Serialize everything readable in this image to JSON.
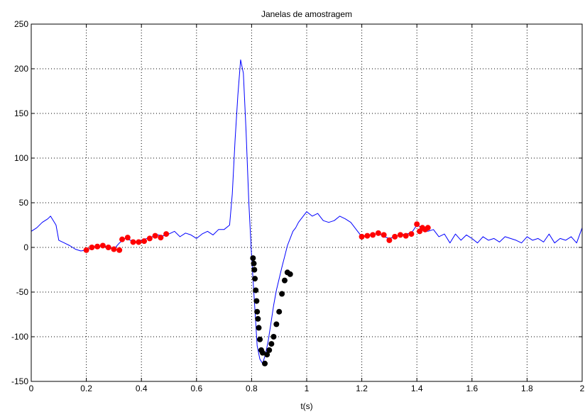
{
  "chart_data": {
    "type": "line",
    "title": "Janelas de amostragem",
    "xlabel": "t(s)",
    "ylabel": "",
    "xlim": [
      0,
      2
    ],
    "ylim": [
      -150,
      250
    ],
    "xticks": [
      0,
      0.2,
      0.4,
      0.6,
      0.8,
      1,
      1.2,
      1.4,
      1.6,
      1.8,
      2
    ],
    "xtick_labels": [
      "0",
      "0.2",
      "0.4",
      "0.6",
      "0.8",
      "1",
      "1.2",
      "1.4",
      "1.6",
      "1.8",
      "2"
    ],
    "yticks": [
      -150,
      -100,
      -50,
      0,
      50,
      100,
      150,
      200,
      250
    ],
    "ytick_labels": [
      "-150",
      "-100",
      "-50",
      "0",
      "50",
      "100",
      "150",
      "200",
      "250"
    ],
    "grid": true,
    "colors": {
      "signal": "#0000ff",
      "window_red": "#ff0000",
      "window_black": "#000000",
      "grid": "#000000"
    },
    "series": [
      {
        "style": "line",
        "color": "#0000ff",
        "x": [
          0,
          0.02,
          0.04,
          0.06,
          0.07,
          0.09,
          0.1,
          0.12,
          0.14,
          0.16,
          0.18,
          0.2,
          0.22,
          0.24,
          0.26,
          0.28,
          0.3,
          0.32,
          0.34,
          0.36,
          0.38,
          0.4,
          0.42,
          0.44,
          0.46,
          0.48,
          0.5,
          0.52,
          0.54,
          0.56,
          0.58,
          0.6,
          0.62,
          0.64,
          0.66,
          0.68,
          0.7,
          0.72,
          0.73,
          0.74,
          0.75,
          0.76,
          0.77,
          0.78,
          0.79,
          0.8,
          0.81,
          0.82,
          0.83,
          0.84,
          0.85,
          0.86,
          0.87,
          0.88,
          0.89,
          0.9,
          0.91,
          0.92,
          0.93,
          0.94,
          0.95,
          0.96,
          0.97,
          0.98,
          1,
          1.02,
          1.04,
          1.06,
          1.08,
          1.1,
          1.12,
          1.14,
          1.16,
          1.18,
          1.2,
          1.22,
          1.24,
          1.26,
          1.28,
          1.3,
          1.32,
          1.34,
          1.36,
          1.38,
          1.4,
          1.42,
          1.44,
          1.46,
          1.48,
          1.5,
          1.52,
          1.54,
          1.56,
          1.58,
          1.6,
          1.62,
          1.64,
          1.66,
          1.68,
          1.7,
          1.72,
          1.74,
          1.76,
          1.78,
          1.8,
          1.82,
          1.84,
          1.86,
          1.88,
          1.9,
          1.92,
          1.94,
          1.96,
          1.98,
          2
        ],
        "y": [
          18,
          22,
          28,
          32,
          35,
          25,
          8,
          5,
          2,
          -2,
          -4,
          -3,
          0,
          1,
          2,
          0,
          -2,
          5,
          10,
          8,
          6,
          8,
          10,
          12,
          14,
          13,
          15,
          18,
          12,
          16,
          14,
          10,
          15,
          18,
          14,
          20,
          20,
          25,
          60,
          120,
          170,
          210,
          195,
          130,
          50,
          -10,
          -60,
          -110,
          -125,
          -130,
          -120,
          -105,
          -85,
          -65,
          -48,
          -35,
          -22,
          -10,
          2,
          10,
          18,
          22,
          28,
          32,
          40,
          35,
          38,
          30,
          28,
          30,
          35,
          32,
          28,
          20,
          12,
          14,
          14,
          16,
          12,
          10,
          12,
          14,
          15,
          16,
          25,
          22,
          18,
          20,
          12,
          15,
          5,
          15,
          8,
          14,
          10,
          5,
          12,
          8,
          10,
          6,
          12,
          10,
          8,
          5,
          12,
          8,
          10,
          6,
          15,
          5,
          10,
          8,
          12,
          5,
          22
        ]
      },
      {
        "style": "markers",
        "color": "#ff0000",
        "x": [
          0.2,
          0.22,
          0.24,
          0.26,
          0.28,
          0.3,
          0.32,
          0.33,
          0.35,
          0.37,
          0.39,
          0.41,
          0.43,
          0.45,
          0.47,
          0.49
        ],
        "y": [
          -3,
          0,
          1,
          2,
          0,
          -2,
          -3,
          9,
          11,
          6,
          6,
          7,
          10,
          13,
          11,
          15
        ]
      },
      {
        "style": "markers",
        "color": "#000000",
        "x": [
          0.805,
          0.808,
          0.81,
          0.812,
          0.815,
          0.818,
          0.82,
          0.823,
          0.826,
          0.83,
          0.835,
          0.84,
          0.848,
          0.856,
          0.864,
          0.872,
          0.88,
          0.89,
          0.9,
          0.91,
          0.92,
          0.93,
          0.94
        ],
        "y": [
          -12,
          -18,
          -25,
          -35,
          -48,
          -60,
          -72,
          -80,
          -90,
          -103,
          -115,
          -118,
          -130,
          -120,
          -115,
          -108,
          -100,
          -86,
          -72,
          -52,
          -37,
          -28,
          -30
        ]
      },
      {
        "style": "markers",
        "color": "#ff0000",
        "x": [
          1.2,
          1.22,
          1.24,
          1.26,
          1.28,
          1.3,
          1.32,
          1.34,
          1.36,
          1.38,
          1.4,
          1.41,
          1.42,
          1.43,
          1.44
        ],
        "y": [
          12,
          13,
          14,
          16,
          14,
          8,
          12,
          14,
          13,
          15,
          26,
          18,
          22,
          20,
          22
        ]
      }
    ]
  }
}
